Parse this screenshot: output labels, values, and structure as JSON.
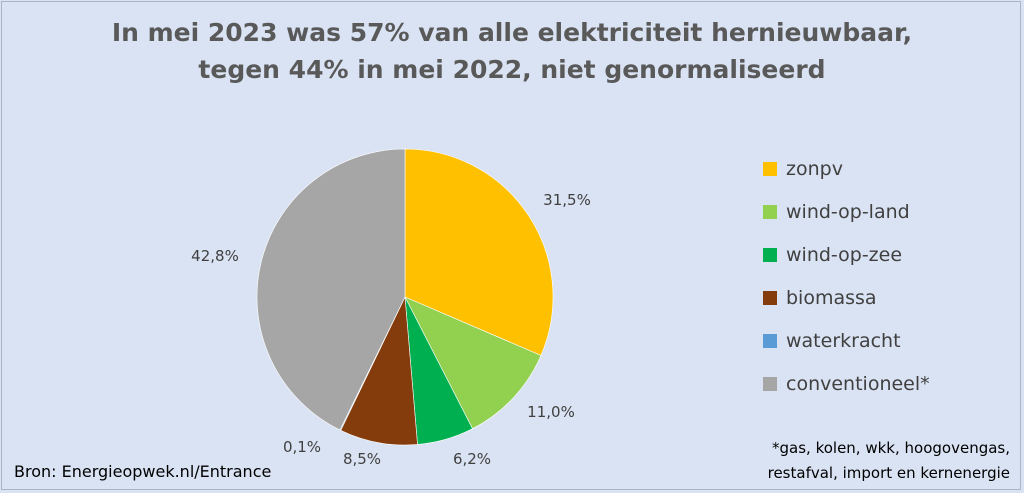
{
  "chart_data": {
    "type": "pie",
    "title": "In mei 2023 was 57% van alle elektriciteit hernieuwbaar,",
    "subtitle": "tegen 44% in mei 2022, niet genormaliseerd",
    "categories": [
      "zonpv",
      "wind-op-land",
      "wind-op-zee",
      "biomassa",
      "waterkracht",
      "conventioneel*"
    ],
    "values": [
      31.5,
      11.0,
      6.2,
      8.5,
      0.1,
      42.8
    ],
    "data_labels": [
      "31,5%",
      "11,0%",
      "6,2%",
      "8,5%",
      "0,1%",
      "42,8%"
    ],
    "colors": [
      "#ffc000",
      "#92d050",
      "#00b050",
      "#843c0c",
      "#5b9bd5",
      "#a6a6a6"
    ],
    "legend_position": "right"
  },
  "source": "Bron: Energieopwek.nl/Entrance",
  "footnote": [
    "*gas, kolen, wkk, hoogovengas,",
    "restafval, import en kernenergie"
  ],
  "background_color": "#dae3f3"
}
